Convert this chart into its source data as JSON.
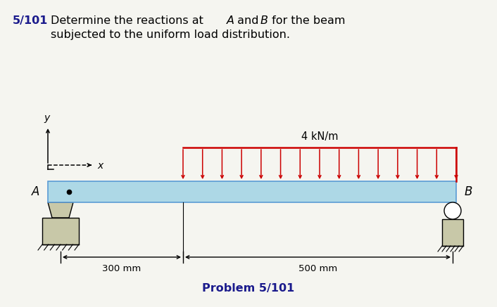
{
  "title_bold": "5/101",
  "title_rest1": " Determine the reactions at ",
  "title_A": "A",
  "title_rest2": " and ",
  "title_B": "B",
  "title_rest3": " for the beam",
  "subtitle": "subjected to the uniform load distribution.",
  "load_label": "4 kN/m",
  "dim_label_left": "←—300 mm—→",
  "dim_label_right": "←—500 mm—→",
  "problem_label": "Problem 5/101",
  "beam_color": "#ADD8E6",
  "beam_edge_color": "#5B9BD5",
  "arrow_color": "#CC0000",
  "support_color": "#C8C8A8",
  "bg_color": "#F5F5F0",
  "num_arrows": 15,
  "title_bold_color": "#1a1a8c",
  "problem_label_color": "#1a1a8c"
}
